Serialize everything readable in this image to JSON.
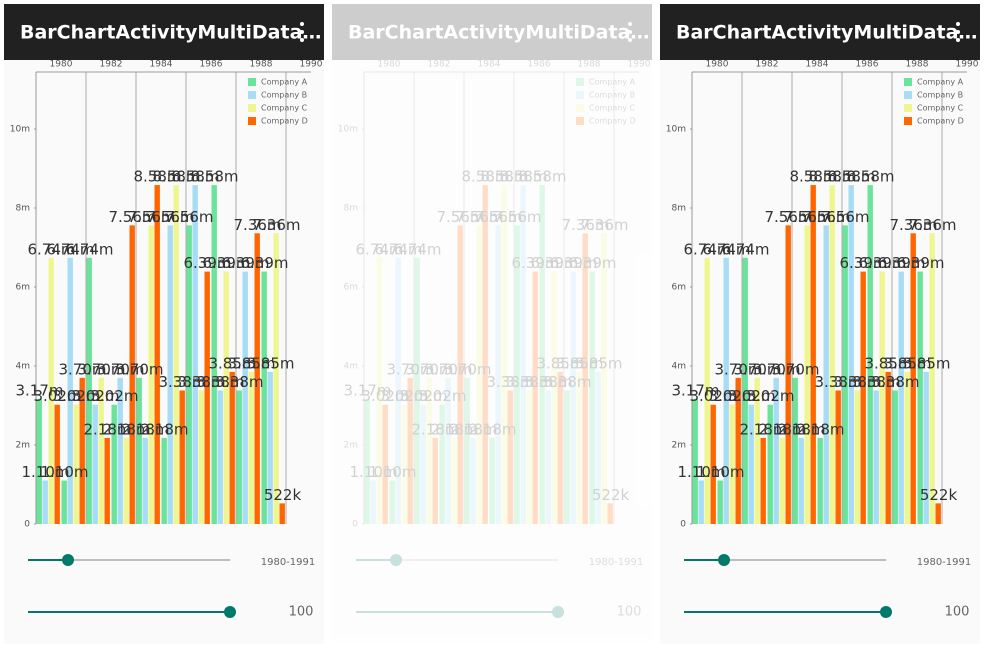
{
  "app_bar": {
    "title": "BarChartActivityMultiData…"
  },
  "chart_data": {
    "type": "bar",
    "x": [
      1980,
      1981,
      1982,
      1983,
      1984,
      1985,
      1986,
      1987,
      1988,
      1989
    ],
    "xlim": [
      1979,
      1990
    ],
    "xticks": [
      1980,
      1982,
      1984,
      1986,
      1988,
      1990
    ],
    "ylim": [
      0,
      11.4
    ],
    "yticks": [
      0,
      {
        "value": 2,
        "label": "2m"
      },
      {
        "value": 4,
        "label": "4m"
      },
      {
        "value": 6,
        "label": "6m"
      },
      {
        "value": 8,
        "label": "8m"
      },
      {
        "value": 10,
        "label": "10m"
      }
    ],
    "legend": "top-right",
    "series": [
      {
        "name": "Company A",
        "color": "#6ce39a",
        "values": [
          3.17,
          1.1,
          6.74,
          3.02,
          3.7,
          2.18,
          7.56,
          8.58,
          3.38,
          6.39
        ],
        "value_labels": [
          "3.17m",
          "1.10m",
          "6.74m",
          "3.02m",
          "3.70m",
          "2.18m",
          "7.56m",
          "8.58m",
          "3.38m",
          "6.39m"
        ]
      },
      {
        "name": "Company B",
        "color": "#a7dcf6",
        "values": [
          1.1,
          6.74,
          3.02,
          3.7,
          2.18,
          7.56,
          8.58,
          3.38,
          6.39,
          3.85
        ],
        "value_labels": [
          "1.10m",
          "6.74m",
          "3.02m",
          "3.70m",
          "2.18m",
          "7.56m",
          "8.58m",
          "3.38m",
          "6.39m",
          "3.85m"
        ]
      },
      {
        "name": "Company C",
        "color": "#eff58f",
        "values": [
          6.74,
          3.02,
          3.7,
          2.18,
          7.56,
          8.58,
          3.38,
          6.39,
          3.85,
          7.36
        ],
        "value_labels": [
          "6.74m",
          "3.02m",
          "3.70m",
          "2.18m",
          "7.56m",
          "8.58m",
          "3.38m",
          "6.39m",
          "3.85m",
          "7.36m"
        ]
      },
      {
        "name": "Company D",
        "color": "#ff6600",
        "values": [
          3.02,
          3.7,
          2.18,
          7.56,
          8.58,
          3.38,
          6.39,
          3.85,
          7.36,
          0.522
        ],
        "value_labels": [
          "3.02m",
          "3.70m",
          "2.18m",
          "7.56m",
          "8.58m",
          "3.38m",
          "6.39m",
          "3.85m",
          "7.36m",
          "522k"
        ]
      }
    ]
  },
  "controls": {
    "range_label": "1980-1991",
    "count": 100
  }
}
